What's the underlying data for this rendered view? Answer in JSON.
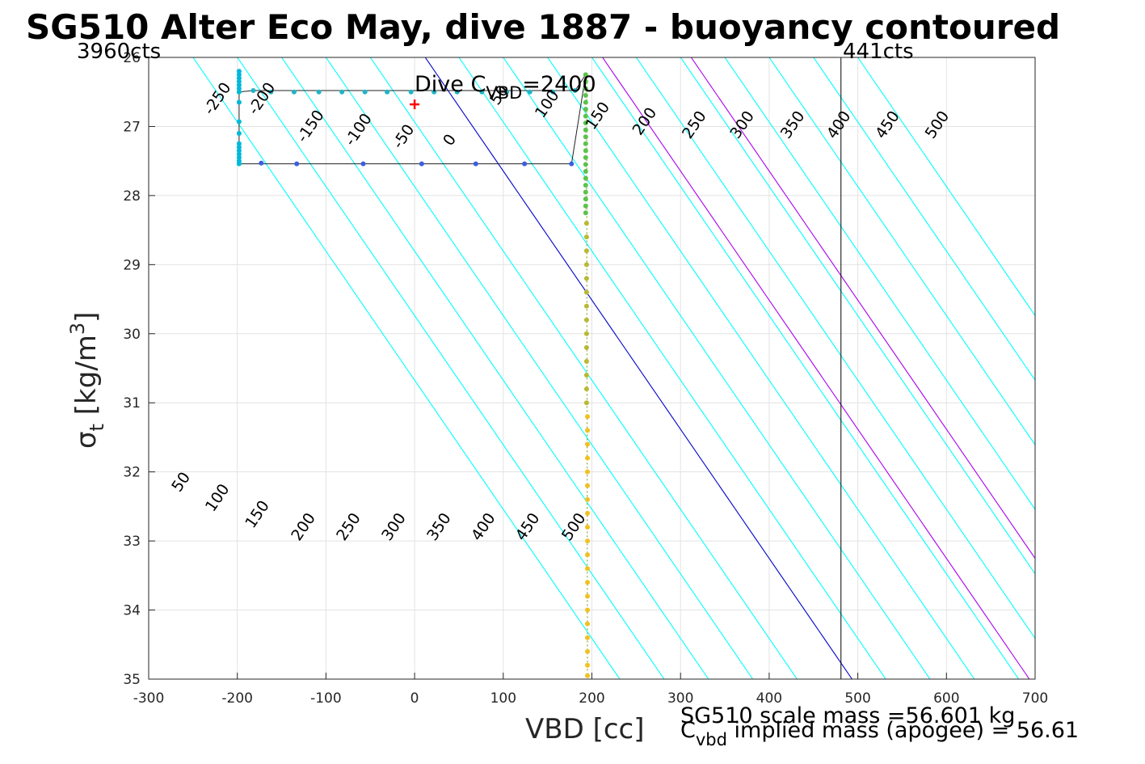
{
  "chart_data": {
    "type": "scatter",
    "title": "SG510 Alter Eco May, dive 1887 - buoyancy contoured",
    "xlabel": "VBD [cc]",
    "ylabel": {
      "base": "σ",
      "sub": "t",
      "text": " [kg/m",
      "sup": "3",
      "close": "]"
    },
    "xlim": [
      -300,
      700
    ],
    "ylim": [
      26,
      35
    ],
    "y_reversed": true,
    "grid": true,
    "xticks": [
      "-300",
      "-200",
      "-100",
      "0",
      "100",
      "200",
      "300",
      "400",
      "500",
      "600",
      "700"
    ],
    "yticks": [
      "26",
      "27",
      "28",
      "29",
      "30",
      "31",
      "32",
      "33",
      "34",
      "35"
    ],
    "corner_left": "3960cts",
    "corner_right": "441cts",
    "vertical_line_x": 481,
    "dive_cvbd_label": {
      "pre": "Dive C",
      "sub": "VBD",
      "post": "=2400"
    },
    "dive_cvbd_marker": {
      "x": 0,
      "y": 26.68
    },
    "contour_slope_cc_per_sigma": 53.5,
    "contour_levels": [
      {
        "level": -250,
        "label": "-250",
        "x_at_26": -250,
        "color": "#00ffff"
      },
      {
        "level": -200,
        "label": "-200",
        "x_at_26": -200,
        "color": "#00ffff"
      },
      {
        "level": -150,
        "label": "-150",
        "x_at_26": -150,
        "color": "#00ffff"
      },
      {
        "level": -100,
        "label": "-100",
        "x_at_26": -100,
        "color": "#00ffff"
      },
      {
        "level": -50,
        "label": "-50",
        "x_at_26": -50,
        "color": "#00ffff"
      },
      {
        "level": 0,
        "label": "0",
        "x_at_26": 12,
        "color": "#0000cc"
      },
      {
        "level": 50,
        "label": "50",
        "x_at_26": 50,
        "color": "#00ffff"
      },
      {
        "level": 100,
        "label": "100",
        "x_at_26": 100,
        "color": "#00ffff"
      },
      {
        "level": 150,
        "label": "150",
        "x_at_26": 150,
        "color": "#00ffff"
      },
      {
        "level": 200,
        "label": "200",
        "x_at_26": 200,
        "color": "#00ffff"
      },
      {
        "level": 250,
        "label": "250",
        "x_at_26": 250,
        "color": "#00ffff"
      },
      {
        "level": 300,
        "label": "300",
        "x_at_26": 300,
        "color": "#00ffff"
      },
      {
        "level": 350,
        "label": "350",
        "x_at_26": 350,
        "color": "#00ffff"
      },
      {
        "level": 400,
        "label": "400",
        "x_at_26": 400,
        "color": "#00ffff"
      },
      {
        "level": 450,
        "label": "450",
        "x_at_26": 450,
        "color": "#00ffff"
      },
      {
        "level": 500,
        "label": "500",
        "x_at_26": 500,
        "color": "#00ffff"
      }
    ],
    "extra_lines": [
      {
        "x_at_26": 212,
        "color": "#aa00ee"
      },
      {
        "x_at_26": 312,
        "color": "#aa00ee"
      }
    ],
    "upper_labels": [
      {
        "text": "-250",
        "x": -222,
        "y": 26.6
      },
      {
        "text": "-200",
        "x": -172,
        "y": 26.6
      },
      {
        "text": "-150",
        "x": -117,
        "y": 27.0
      },
      {
        "text": "-100",
        "x": -63,
        "y": 27.05
      },
      {
        "text": "-50",
        "x": -12,
        "y": 27.15
      },
      {
        "text": "0",
        "x": 40,
        "y": 27.2
      },
      {
        "text": "50",
        "x": 96,
        "y": 26.55
      },
      {
        "text": "100",
        "x": 150,
        "y": 26.68
      },
      {
        "text": "150",
        "x": 207,
        "y": 26.85
      },
      {
        "text": "200",
        "x": 260,
        "y": 26.93
      },
      {
        "text": "250",
        "x": 316,
        "y": 26.98
      },
      {
        "text": "300",
        "x": 370,
        "y": 26.98
      },
      {
        "text": "350",
        "x": 427,
        "y": 26.98
      },
      {
        "text": "400",
        "x": 479,
        "y": 26.98
      },
      {
        "text": "450",
        "x": 534,
        "y": 26.98
      },
      {
        "text": "500",
        "x": 590,
        "y": 26.98
      }
    ],
    "lower_labels": [
      {
        "text": "50",
        "x": -263,
        "y": 32.15
      },
      {
        "text": "100",
        "x": -222,
        "y": 32.38
      },
      {
        "text": "150",
        "x": -177,
        "y": 32.62
      },
      {
        "text": "200",
        "x": -125,
        "y": 32.8
      },
      {
        "text": "250",
        "x": -74,
        "y": 32.8
      },
      {
        "text": "300",
        "x": -23,
        "y": 32.8
      },
      {
        "text": "350",
        "x": 28,
        "y": 32.8
      },
      {
        "text": "400",
        "x": 78,
        "y": 32.8
      },
      {
        "text": "450",
        "x": 128,
        "y": 32.8
      },
      {
        "text": "500",
        "x": 180,
        "y": 32.8
      }
    ],
    "series": [
      {
        "color": "#00b8d9",
        "points": [
          [
            -198,
            26.2
          ],
          [
            -198,
            26.25
          ],
          [
            -198,
            26.3
          ],
          [
            -198,
            26.35
          ],
          [
            -198,
            26.4
          ],
          [
            -198,
            26.45
          ],
          [
            -198,
            26.5
          ],
          [
            -198,
            26.65
          ],
          [
            -198,
            26.93
          ],
          [
            -198,
            27.1
          ],
          [
            -198,
            27.25
          ],
          [
            -198,
            27.3
          ],
          [
            -198,
            27.35
          ],
          [
            -198,
            27.4
          ],
          [
            -198,
            27.45
          ],
          [
            -198,
            27.5
          ],
          [
            -198,
            27.54
          ]
        ]
      },
      {
        "color": "#1fb5c4",
        "points": [
          [
            -182,
            26.48
          ],
          [
            -162,
            26.5
          ],
          [
            -136,
            26.5
          ],
          [
            -108,
            26.5
          ],
          [
            -82,
            26.5
          ],
          [
            -56,
            26.5
          ],
          [
            -31,
            26.5
          ],
          [
            -4,
            26.5
          ],
          [
            22,
            26.5
          ],
          [
            48,
            26.5
          ],
          [
            76,
            26.5
          ],
          [
            104,
            26.5
          ],
          [
            130,
            26.5
          ],
          [
            156,
            26.5
          ],
          [
            181,
            26.48
          ]
        ]
      },
      {
        "color": "#3b5fe0",
        "points": [
          [
            -173,
            27.53
          ],
          [
            -133,
            27.54
          ],
          [
            -58,
            27.54
          ],
          [
            8,
            27.54
          ],
          [
            69,
            27.54
          ],
          [
            124,
            27.54
          ],
          [
            177,
            27.54
          ]
        ]
      },
      {
        "color": "#5cc24c",
        "points": [
          [
            193,
            26.25
          ],
          [
            193,
            26.35
          ],
          [
            193,
            26.45
          ],
          [
            193,
            26.55
          ],
          [
            193,
            26.65
          ],
          [
            193,
            26.75
          ],
          [
            193,
            26.85
          ],
          [
            193,
            26.95
          ],
          [
            193,
            27.05
          ],
          [
            193,
            27.15
          ],
          [
            193,
            27.25
          ],
          [
            193,
            27.35
          ],
          [
            193,
            27.45
          ],
          [
            193,
            27.55
          ],
          [
            193,
            27.65
          ],
          [
            193,
            27.75
          ],
          [
            193,
            27.85
          ],
          [
            193,
            27.95
          ],
          [
            193,
            28.05
          ],
          [
            193,
            28.15
          ],
          [
            193,
            28.25
          ]
        ]
      },
      {
        "color": "#b9b933",
        "points": [
          [
            194,
            28.4
          ],
          [
            194,
            28.6
          ],
          [
            194,
            28.8
          ],
          [
            194,
            29.0
          ],
          [
            194,
            29.2
          ],
          [
            194,
            29.4
          ],
          [
            194,
            29.6
          ],
          [
            194,
            29.8
          ],
          [
            194,
            30.0
          ],
          [
            194,
            30.2
          ],
          [
            194,
            30.4
          ],
          [
            194,
            30.6
          ],
          [
            194,
            30.8
          ],
          [
            194,
            31.0
          ]
        ]
      },
      {
        "color": "#f2c11f",
        "points": [
          [
            195,
            31.2
          ],
          [
            195,
            31.4
          ],
          [
            195,
            31.6
          ],
          [
            195,
            31.8
          ],
          [
            195,
            32.0
          ],
          [
            195,
            32.2
          ],
          [
            195,
            32.4
          ],
          [
            195,
            32.6
          ],
          [
            195,
            32.8
          ],
          [
            195,
            33.0
          ],
          [
            195,
            33.2
          ],
          [
            195,
            33.4
          ],
          [
            195,
            33.6
          ],
          [
            195,
            33.8
          ],
          [
            195,
            34.0
          ],
          [
            195,
            34.2
          ],
          [
            195,
            34.4
          ],
          [
            195,
            34.6
          ],
          [
            195,
            34.8
          ],
          [
            195,
            34.95
          ]
        ]
      }
    ],
    "track_path": [
      [
        -198,
        26.2
      ],
      [
        -198,
        27.54
      ],
      [
        177,
        27.54
      ],
      [
        193,
        26.25
      ],
      [
        181,
        26.48
      ],
      [
        -182,
        26.48
      ],
      [
        -198,
        26.5
      ]
    ],
    "scale_mass_text": "SG510 scale mass =56.601 kg",
    "implied_mass": {
      "pre": "C",
      "sub": "vbd",
      "post": " implied mass (apogee) = 56.61"
    }
  }
}
